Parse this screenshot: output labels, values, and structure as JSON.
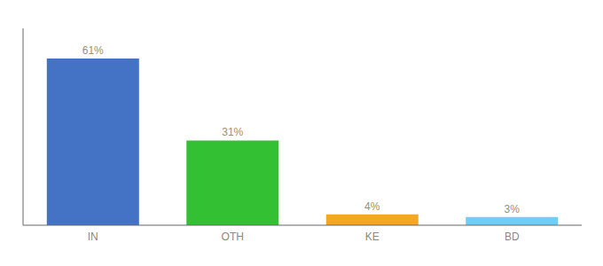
{
  "chart_data": {
    "type": "bar",
    "categories": [
      "IN",
      "OTH",
      "KE",
      "BD"
    ],
    "values": [
      61,
      31,
      4,
      3
    ],
    "value_labels": [
      "61%",
      "31%",
      "4%",
      "3%"
    ],
    "colors": [
      "#4472c4",
      "#33c133",
      "#f5a623",
      "#6ecff6"
    ],
    "ylim": [
      0,
      72
    ],
    "yticks": [],
    "grid": false,
    "data_labels": true,
    "tick_labels": "x"
  }
}
